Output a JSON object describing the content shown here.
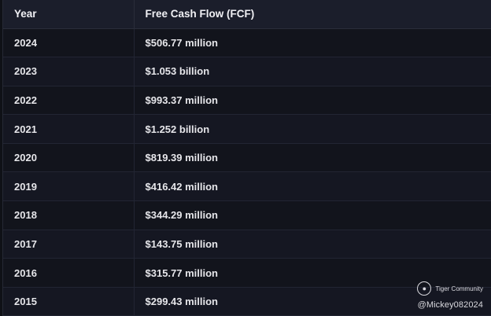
{
  "table": {
    "headers": {
      "year": "Year",
      "fcf": "Free Cash Flow (FCF)"
    },
    "rows": [
      {
        "year": "2024",
        "fcf": "$506.77 million"
      },
      {
        "year": "2023",
        "fcf": "$1.053 billion"
      },
      {
        "year": "2022",
        "fcf": "$993.37 million"
      },
      {
        "year": "2021",
        "fcf": "$1.252 billion"
      },
      {
        "year": "2020",
        "fcf": "$819.39 million"
      },
      {
        "year": "2019",
        "fcf": "$416.42 million"
      },
      {
        "year": "2018",
        "fcf": "$344.29 million"
      },
      {
        "year": "2017",
        "fcf": "$143.75 million"
      },
      {
        "year": "2016",
        "fcf": "$315.77 million"
      },
      {
        "year": "2015",
        "fcf": "$299.43 million"
      }
    ]
  },
  "watermark": {
    "brand": "Tiger Community",
    "handle": "@Mickey082024",
    "logo_icon": "tiger-logo-icon"
  },
  "colors": {
    "background": "#12141c",
    "header_background": "#1b1e2b",
    "text": "#e6e6ea"
  }
}
